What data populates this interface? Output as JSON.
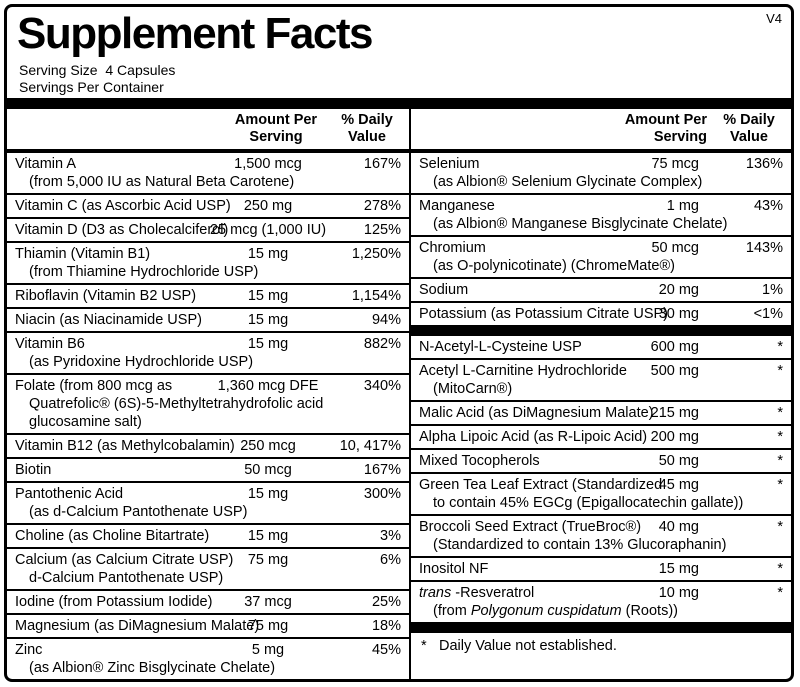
{
  "version_tag": "V4",
  "title": "Supplement Facts",
  "serving_size": "Serving Size  4 Capsules",
  "servings_per_container": "Servings Per Container",
  "col_headers": {
    "amount_line1": "Amount Per",
    "amount_line2": "Serving",
    "dv_line1": "% Daily",
    "dv_line2": "Value"
  },
  "footnote": {
    "star": "*",
    "text": "Daily Value not established."
  },
  "columns": {
    "left": {
      "rows": [
        {
          "name": "Vitamin A",
          "sub": "(from 5,000 IU as Natural Beta Carotene)",
          "amount": "1,500 mcg",
          "dv": "167%"
        },
        {
          "name": "Vitamin C (as Ascorbic Acid USP)",
          "amount": "250 mg",
          "dv": "278%"
        },
        {
          "name": "Vitamin D (D3 as Cholecalciferol)",
          "amount": "25 mcg (1,000 IU)",
          "dv": "125%"
        },
        {
          "name": "Thiamin (Vitamin B1)",
          "sub": "(from Thiamine Hydrochloride USP)",
          "amount": "15 mg",
          "dv": "1,250%"
        },
        {
          "name": "Riboflavin (Vitamin B2 USP)",
          "amount": "15 mg",
          "dv": "1,154%"
        },
        {
          "name": "Niacin (as Niacinamide USP)",
          "amount": "15 mg",
          "dv": "94%"
        },
        {
          "name": "Vitamin B6",
          "sub": "(as Pyridoxine Hydrochloride USP)",
          "amount": "15 mg",
          "dv": "882%"
        },
        {
          "name": "Folate (from 800 mcg as",
          "sub": "Quatrefolic® (6S)-5-Methyltetrahydrofolic acid glucosamine salt)",
          "amount": "1,360 mcg DFE",
          "dv": "340%"
        },
        {
          "name": "Vitamin B12 (as Methylcobalamin)",
          "amount": "250 mcg",
          "dv": "10, 417%"
        },
        {
          "name": "Biotin",
          "amount": "50 mcg",
          "dv": "167%"
        },
        {
          "name": "Pantothenic Acid",
          "sub": "(as d-Calcium Pantothenate USP)",
          "amount": "15 mg",
          "dv": "300%"
        },
        {
          "name": "Choline (as Choline Bitartrate)",
          "amount": "15 mg",
          "dv": "3%"
        },
        {
          "name": "Calcium (as Calcium Citrate USP)",
          "sub": "d-Calcium Pantothenate USP)",
          "amount": "75 mg",
          "dv": "6%"
        },
        {
          "name": "Iodine (from Potassium Iodide)",
          "amount": "37 mcg",
          "dv": "25%"
        },
        {
          "name": "Magnesium (as DiMagnesium Malate)",
          "amount": "75 mg",
          "dv": "18%"
        },
        {
          "name": "Zinc",
          "sub": "(as Albion® Zinc Bisglycinate Chelate)",
          "amount": "5 mg",
          "dv": "45%"
        }
      ]
    },
    "right": {
      "sections": [
        {
          "rows": [
            {
              "name": "Selenium",
              "sub": "(as Albion® Selenium Glycinate Complex)",
              "amount": "75 mcg",
              "dv": "136%"
            },
            {
              "name": "Manganese",
              "sub": "(as Albion® Manganese Bisglycinate Chelate)",
              "amount": "1 mg",
              "dv": "43%"
            },
            {
              "name": "Chromium",
              "sub": "(as O-polynicotinate) (ChromeMate®)",
              "amount": "50 mcg",
              "dv": "143%"
            },
            {
              "name": "Sodium",
              "amount": "20 mg",
              "dv": "1%"
            },
            {
              "name": "Potassium (as Potassium Citrate USP)",
              "amount": "30 mg",
              "dv": "<1%"
            }
          ]
        },
        {
          "rows": [
            {
              "name": "N-Acetyl-L-Cysteine USP",
              "amount": "600 mg",
              "dv": "*"
            },
            {
              "name": "Acetyl L-Carnitine Hydrochloride",
              "sub": "(MitoCarn®)",
              "amount": "500 mg",
              "dv": "*"
            },
            {
              "name": "Malic Acid (as DiMagnesium Malate)",
              "amount": "215 mg",
              "dv": "*"
            },
            {
              "name": "Alpha Lipoic Acid (as R-Lipoic Acid)",
              "amount": "200 mg",
              "dv": "*"
            },
            {
              "name": "Mixed Tocopherols",
              "amount": "50 mg",
              "dv": "*"
            },
            {
              "name": "Green Tea Leaf Extract (Standardized",
              "sub": "to contain 45% EGCg (Epigallocatechin gallate))",
              "amount": "45 mg",
              "dv": "*"
            },
            {
              "name": "Broccoli Seed Extract (TrueBroc®)",
              "sub": "(Standardized to contain 13% Glucoraphanin)",
              "amount": "40 mg",
              "dv": "*"
            },
            {
              "name": "Inositol NF",
              "amount": "15 mg",
              "dv": "*"
            },
            {
              "name_parts": [
                {
                  "text": "trans",
                  "italic": true
                },
                {
                  "text": " -Resveratrol"
                }
              ],
              "sub_parts": [
                {
                  "text": "(from "
                },
                {
                  "text": "Polygonum cuspidatum",
                  "italic": true
                },
                {
                  "text": " (Roots))"
                }
              ],
              "amount": "10 mg",
              "dv": "*"
            }
          ]
        }
      ]
    }
  }
}
